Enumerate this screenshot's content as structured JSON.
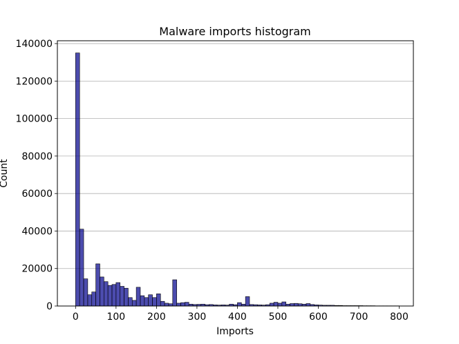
{
  "chart_data": {
    "type": "bar",
    "title": "Malware imports histogram",
    "xlabel": "Imports",
    "ylabel": "Count",
    "xlim": [
      -45,
      835
    ],
    "ylim": [
      0,
      141500
    ],
    "xticks": [
      0,
      100,
      200,
      300,
      400,
      500,
      600,
      700,
      800
    ],
    "yticks": [
      0,
      20000,
      40000,
      60000,
      80000,
      100000,
      120000,
      140000
    ],
    "grid": "horizontal",
    "bar_color": "#00008b",
    "bar_alpha": 0.7,
    "bin_width": 10,
    "bin_start": 0,
    "values": [
      135000,
      41000,
      14500,
      6000,
      7500,
      22500,
      15500,
      13000,
      11000,
      11500,
      12500,
      10500,
      9500,
      4500,
      3000,
      10000,
      5500,
      4500,
      6000,
      4500,
      6500,
      2500,
      1500,
      1200,
      14000,
      1500,
      1800,
      2000,
      1000,
      800,
      900,
      1000,
      700,
      800,
      600,
      500,
      600,
      500,
      1000,
      700,
      1800,
      1000,
      5000,
      800,
      700,
      600,
      500,
      700,
      1500,
      2000,
      1500,
      2200,
      1000,
      1300,
      1400,
      1200,
      1000,
      1300,
      800,
      600,
      500,
      400,
      400,
      400,
      300,
      300,
      200,
      200,
      200,
      200,
      200,
      150,
      150,
      150,
      100,
      100,
      100,
      100,
      100,
      100
    ]
  }
}
